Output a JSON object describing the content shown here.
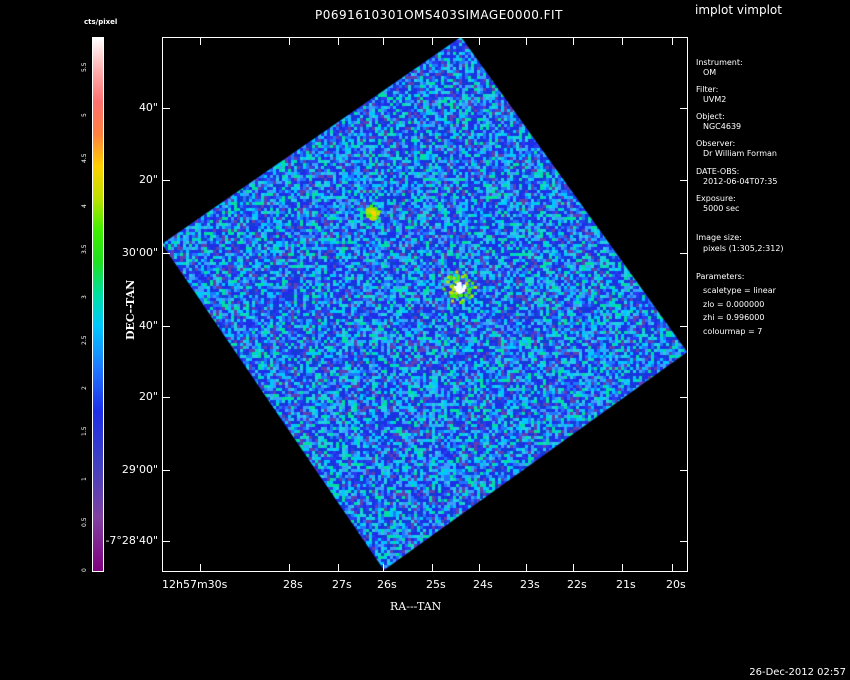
{
  "app_title": "implot vimplot",
  "plot_title": "P0691610301OMS403SIMAGE0000.FIT",
  "colorbar": {
    "unit_label": "cts/pixel",
    "tick_labels": [
      "0",
      "0.5",
      "1",
      "1.5",
      "2",
      "2.5",
      "3",
      "3.5",
      "4",
      "4.5",
      "5",
      "5.5"
    ]
  },
  "y_axis": {
    "title": "DEC--TAN",
    "tick_labels": [
      "40\"",
      "20\"",
      "30'00\"",
      "40\"",
      "20\"",
      "29'00\"",
      "-7°28'40\""
    ]
  },
  "x_axis": {
    "title": "RA---TAN",
    "tick_labels": [
      "12h57m30s",
      "28s",
      "27s",
      "26s",
      "25s",
      "24s",
      "23s",
      "22s",
      "21s",
      "20s"
    ]
  },
  "info_panel": {
    "instrument_label": "Instrument:",
    "instrument_value": "OM",
    "filter_label": "Filter:",
    "filter_value": "UVM2",
    "object_label": "Object:",
    "object_value": "NGC4639",
    "observer_label": "Observer:",
    "observer_value": "Dr William Forman",
    "date_label": "DATE-OBS:",
    "date_value": "2012-06-04T07:35",
    "exposure_label": "Exposure:",
    "exposure_value": "5000 sec",
    "image_size_label": "Image size:",
    "image_size_value": "pixels (1:305,2:312)",
    "parameters_label": "Parameters:",
    "scaletype": "scaletype = linear",
    "zlo": "zlo = 0.000000",
    "zhi": "zhi = 0.996000",
    "colourmap": "colourmap =    7"
  },
  "timestamp": "26-Dec-2012 02:57",
  "palette": {
    "noise_blue": "#1e2ee8",
    "noise_cyan": "#00c8ff",
    "source_white": "#ffffff",
    "background": "#000000"
  }
}
